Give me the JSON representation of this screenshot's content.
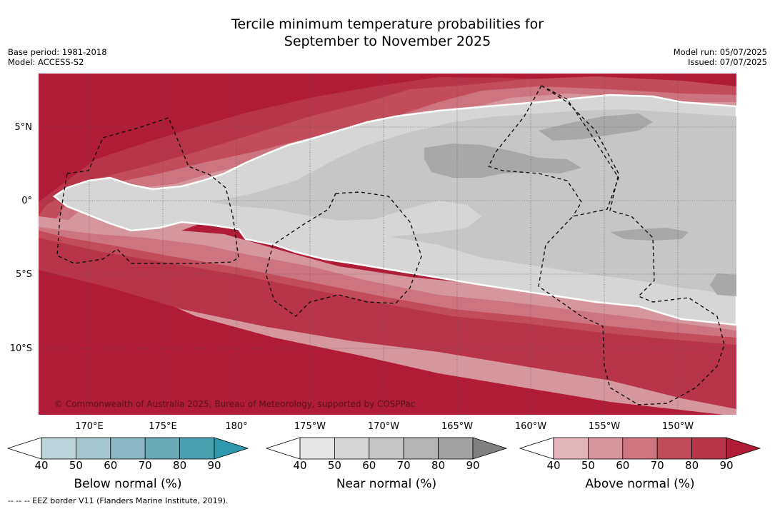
{
  "title_line1": "Tercile minimum temperature probabilities for",
  "title_line2": "September to November 2025",
  "meta_left": [
    "Base period: 1981-2018",
    "Model: ACCESS-S2"
  ],
  "meta_right": [
    "Model run: 05/07/2025",
    "Issued: 07/07/2025"
  ],
  "lat_labels": [
    "5°N",
    "0°",
    "5°S",
    "10°S"
  ],
  "lon_labels": [
    "170°E",
    "175°E",
    "180°",
    "175°W",
    "170°W",
    "165°W",
    "160°W",
    "155°W",
    "150°W"
  ],
  "credit": "© Commonwealth of Australia 2025, Bureau of Meteorology, supported by COSPPac",
  "footer": "-- -- -- EEZ border V11 (Flanders Marine Institute, 2019).",
  "colorbars": [
    {
      "title": "Below normal (%)",
      "ticks": [
        "40",
        "50",
        "60",
        "70",
        "80",
        "90"
      ],
      "colors": [
        "#ffffff",
        "#bcd3da",
        "#a6c7cd",
        "#8ab7c1",
        "#6aa9b6",
        "#4aa0b0",
        "#2f99ad"
      ]
    },
    {
      "title": "Near normal (%)",
      "ticks": [
        "40",
        "50",
        "60",
        "70",
        "80",
        "90"
      ],
      "colors": [
        "#ffffff",
        "#e6e6e6",
        "#d6d6d6",
        "#c6c6c6",
        "#b4b4b4",
        "#a2a2a2",
        "#808080"
      ]
    },
    {
      "title": "Above normal (%)",
      "ticks": [
        "40",
        "50",
        "60",
        "70",
        "80",
        "90"
      ],
      "colors": [
        "#ffffff",
        "#e3b6bc",
        "#d6969e",
        "#cc7480",
        "#c24b5c",
        "#b8344a",
        "#b01c38"
      ]
    }
  ],
  "colors": {
    "above_90": "#b01c38",
    "above_80": "#b8344a",
    "above_70": "#c24b5c",
    "above_60": "#cc7480",
    "above_50": "#d6969e",
    "near_50": "#d6d6d6",
    "near_60": "#c6c6c6",
    "near_70": "#a8a8a8"
  }
}
